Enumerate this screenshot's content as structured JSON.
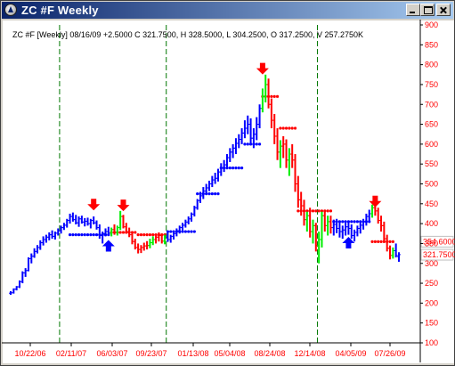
{
  "window": {
    "title": "ZC #F Weekly"
  },
  "chart_data": {
    "type": "ohlc",
    "title": "ZC #F  [Weekly]  08/16/09   +2.5000  C 321.7500,  H 328.5000,  L 304.2500,  O 317.2500,  V 257.2750K",
    "symbol": "ZC #F",
    "interval": "Weekly",
    "last_bar": {
      "date": "08/16/09",
      "change": 2.5,
      "close": 321.75,
      "high": 328.5,
      "low": 304.25,
      "open": 317.25,
      "volume": "257.2750K"
    },
    "ylim": [
      100,
      900
    ],
    "y_ticks": [
      "900",
      "850",
      "800",
      "750",
      "700",
      "650",
      "600",
      "550",
      "500",
      "450",
      "400",
      "350",
      "300",
      "250",
      "200",
      "150",
      "100"
    ],
    "x_ticks": [
      "10/22/06",
      "02/11/07",
      "06/03/07",
      "09/23/07",
      "01/13/08",
      "05/04/08",
      "08/24/08",
      "12/14/08",
      "04/05/09",
      "07/26/09"
    ],
    "price_labels": [
      {
        "text": "354.6000",
        "value": 354.6,
        "color": "#ff0000"
      },
      {
        "text": "321.7500",
        "value": 321.75,
        "color": "#ff0000"
      }
    ],
    "legend": "none",
    "grid": "vertical dashed dividers",
    "colors": {
      "uptrend": "#0000ff",
      "neutral": "#00ee00",
      "downtrend": "#ff0000",
      "divider": "#007700",
      "axis_text": "#ff0000"
    },
    "first_date": "10/22/06",
    "bars_per_week": 1,
    "bars": [
      [
        225,
        230,
        221,
        226
      ],
      [
        226,
        237,
        224,
        235
      ],
      [
        235,
        243,
        232,
        241
      ],
      [
        241,
        257,
        238,
        254
      ],
      [
        254,
        280,
        250,
        276
      ],
      [
        276,
        288,
        266,
        282
      ],
      [
        282,
        315,
        280,
        312
      ],
      [
        312,
        325,
        300,
        318
      ],
      [
        318,
        338,
        314,
        330
      ],
      [
        330,
        346,
        325,
        340
      ],
      [
        340,
        358,
        334,
        352
      ],
      [
        352,
        368,
        345,
        360
      ],
      [
        360,
        372,
        352,
        366
      ],
      [
        366,
        378,
        358,
        372
      ],
      [
        372,
        383,
        362,
        368
      ],
      [
        368,
        380,
        360,
        376
      ],
      [
        376,
        388,
        370,
        382
      ],
      [
        382,
        395,
        375,
        390
      ],
      [
        390,
        402,
        384,
        396
      ],
      [
        396,
        412,
        390,
        408
      ],
      [
        408,
        425,
        400,
        418
      ],
      [
        418,
        428,
        405,
        410
      ],
      [
        410,
        422,
        398,
        402
      ],
      [
        402,
        418,
        392,
        412
      ],
      [
        412,
        420,
        400,
        404
      ],
      [
        404,
        414,
        393,
        406
      ],
      [
        406,
        415,
        395,
        400
      ],
      [
        400,
        412,
        388,
        408
      ],
      [
        408,
        418,
        398,
        402
      ],
      [
        402,
        408,
        385,
        390
      ],
      [
        390,
        398,
        362,
        370
      ],
      [
        370,
        380,
        350,
        375
      ],
      [
        375,
        388,
        368,
        380
      ],
      [
        380,
        392,
        370,
        376
      ],
      [
        376,
        390,
        368,
        385
      ],
      [
        385,
        398,
        372,
        378
      ],
      [
        378,
        395,
        370,
        390
      ],
      [
        390,
        432,
        384,
        418
      ],
      [
        418,
        422,
        388,
        392
      ],
      [
        392,
        402,
        375,
        380
      ],
      [
        380,
        390,
        366,
        372
      ],
      [
        372,
        378,
        348,
        355
      ],
      [
        355,
        362,
        335,
        340
      ],
      [
        340,
        350,
        325,
        335
      ],
      [
        335,
        346,
        326,
        340
      ],
      [
        340,
        352,
        332,
        344
      ],
      [
        344,
        356,
        335,
        345
      ],
      [
        345,
        362,
        338,
        352
      ],
      [
        352,
        368,
        346,
        360
      ],
      [
        360,
        374,
        350,
        366
      ],
      [
        366,
        378,
        355,
        370
      ],
      [
        370,
        375,
        350,
        356
      ],
      [
        356,
        372,
        348,
        366
      ],
      [
        366,
        378,
        354,
        360
      ],
      [
        360,
        372,
        352,
        368
      ],
      [
        368,
        380,
        360,
        375
      ],
      [
        375,
        388,
        368,
        382
      ],
      [
        382,
        395,
        375,
        390
      ],
      [
        390,
        402,
        383,
        396
      ],
      [
        396,
        410,
        390,
        404
      ],
      [
        404,
        418,
        398,
        412
      ],
      [
        412,
        428,
        405,
        424
      ],
      [
        424,
        445,
        418,
        440
      ],
      [
        440,
        462,
        435,
        458
      ],
      [
        458,
        480,
        452,
        470
      ],
      [
        470,
        492,
        462,
        482
      ],
      [
        482,
        500,
        474,
        490
      ],
      [
        490,
        508,
        482,
        500
      ],
      [
        500,
        520,
        492,
        510
      ],
      [
        510,
        528,
        500,
        514
      ],
      [
        514,
        538,
        506,
        530
      ],
      [
        530,
        552,
        520,
        540
      ],
      [
        540,
        560,
        530,
        548
      ],
      [
        548,
        575,
        540,
        566
      ],
      [
        566,
        590,
        555,
        580
      ],
      [
        580,
        600,
        565,
        590
      ],
      [
        590,
        615,
        575,
        602
      ],
      [
        602,
        625,
        590,
        612
      ],
      [
        612,
        640,
        600,
        628
      ],
      [
        628,
        660,
        615,
        640
      ],
      [
        640,
        672,
        625,
        650
      ],
      [
        650,
        665,
        600,
        615
      ],
      [
        615,
        640,
        590,
        625
      ],
      [
        625,
        668,
        610,
        650
      ],
      [
        650,
        700,
        640,
        690
      ],
      [
        690,
        740,
        680,
        720
      ],
      [
        720,
        775,
        705,
        750
      ],
      [
        750,
        765,
        690,
        700
      ],
      [
        700,
        715,
        640,
        660
      ],
      [
        660,
        676,
        600,
        620
      ],
      [
        620,
        640,
        560,
        580
      ],
      [
        580,
        610,
        540,
        595
      ],
      [
        595,
        620,
        565,
        600
      ],
      [
        600,
        612,
        540,
        560
      ],
      [
        560,
        590,
        520,
        575
      ],
      [
        575,
        600,
        540,
        560
      ],
      [
        560,
        575,
        480,
        500
      ],
      [
        500,
        520,
        440,
        460
      ],
      [
        460,
        480,
        420,
        445
      ],
      [
        445,
        460,
        395,
        410
      ],
      [
        410,
        430,
        380,
        420
      ],
      [
        420,
        440,
        365,
        380
      ],
      [
        380,
        410,
        350,
        395
      ],
      [
        395,
        402,
        330,
        345
      ],
      [
        345,
        380,
        300,
        360
      ],
      [
        360,
        430,
        340,
        420
      ],
      [
        420,
        432,
        380,
        395
      ],
      [
        395,
        420,
        370,
        405
      ],
      [
        405,
        420,
        375,
        390
      ],
      [
        390,
        410,
        370,
        398
      ],
      [
        398,
        412,
        376,
        388
      ],
      [
        388,
        402,
        365,
        380
      ],
      [
        380,
        395,
        362,
        384
      ],
      [
        384,
        402,
        370,
        392
      ],
      [
        392,
        405,
        372,
        388
      ],
      [
        388,
        398,
        362,
        370
      ],
      [
        370,
        385,
        355,
        378
      ],
      [
        378,
        395,
        368,
        388
      ],
      [
        388,
        402,
        375,
        396
      ],
      [
        396,
        412,
        385,
        405
      ],
      [
        405,
        425,
        395,
        418
      ],
      [
        418,
        435,
        405,
        425
      ],
      [
        425,
        448,
        415,
        440
      ],
      [
        440,
        452,
        420,
        432
      ],
      [
        432,
        440,
        400,
        408
      ],
      [
        408,
        420,
        380,
        395
      ],
      [
        395,
        405,
        355,
        362
      ],
      [
        362,
        372,
        330,
        338
      ],
      [
        338,
        345,
        310,
        320
      ],
      [
        320,
        340,
        312,
        332
      ],
      [
        332,
        350,
        315,
        320
      ],
      [
        317,
        328,
        304,
        322
      ]
    ],
    "stop_segments": [
      {
        "trend": "up",
        "from": 20,
        "to": 33,
        "value": 372
      },
      {
        "trend": "down",
        "from": 34,
        "to": 42,
        "value": 378
      },
      {
        "trend": "down",
        "from": 43,
        "to": 52,
        "value": 372
      },
      {
        "trend": "up",
        "from": 53,
        "to": 62,
        "value": 380
      },
      {
        "trend": "up",
        "from": 63,
        "to": 70,
        "value": 475
      },
      {
        "trend": "up",
        "from": 71,
        "to": 78,
        "value": 540
      },
      {
        "trend": "up",
        "from": 79,
        "to": 84,
        "value": 600
      },
      {
        "trend": "down",
        "from": 85,
        "to": 90,
        "value": 720
      },
      {
        "trend": "down",
        "from": 91,
        "to": 96,
        "value": 640
      },
      {
        "trend": "down",
        "from": 97,
        "to": 108,
        "value": 432
      },
      {
        "trend": "up",
        "from": 109,
        "to": 121,
        "value": 405
      },
      {
        "trend": "down",
        "from": 122,
        "to": 129,
        "value": 354.6
      }
    ],
    "signals": [
      {
        "bar": 28,
        "direction": "down",
        "value": 440
      },
      {
        "bar": 33,
        "direction": "up",
        "value": 352
      },
      {
        "bar": 38,
        "direction": "down",
        "value": 438
      },
      {
        "bar": 85,
        "direction": "down",
        "value": 782
      },
      {
        "bar": 114,
        "direction": "up",
        "value": 360
      },
      {
        "bar": 123,
        "direction": "down",
        "value": 448
      }
    ]
  }
}
